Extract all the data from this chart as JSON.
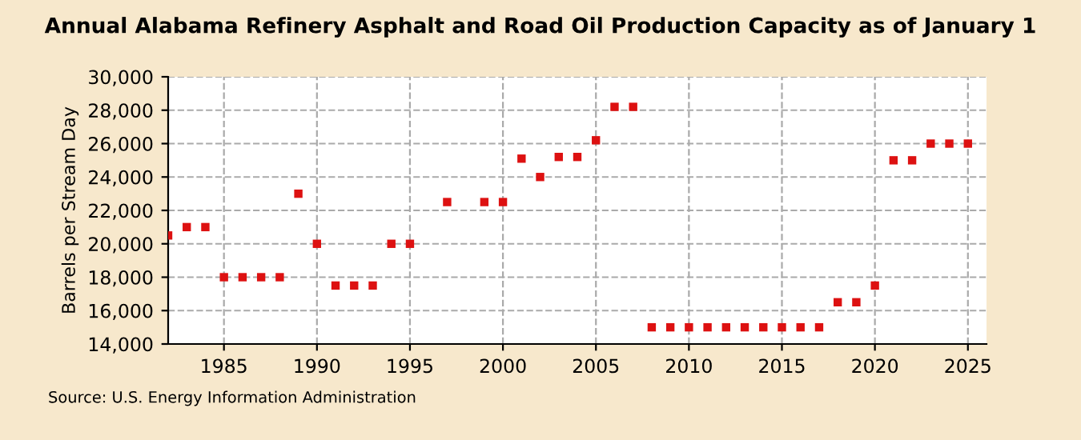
{
  "chart_data": {
    "type": "scatter",
    "title": "Annual Alabama Refinery Asphalt and Road Oil Production Capacity as of January 1",
    "ylabel": "Barrels per Stream Day",
    "annotations": [
      "Source: U.S. Energy Information Administration"
    ],
    "x": [
      1982,
      1983,
      1984,
      1985,
      1986,
      1987,
      1988,
      1989,
      1990,
      1991,
      1992,
      1993,
      1994,
      1995,
      1997,
      1999,
      2000,
      2001,
      2002,
      2003,
      2004,
      2005,
      2006,
      2007,
      2008,
      2009,
      2010,
      2011,
      2012,
      2013,
      2014,
      2015,
      2016,
      2017,
      2018,
      2019,
      2020,
      2021,
      2022,
      2023,
      2024,
      2025
    ],
    "series": [
      {
        "color": "#dd1111",
        "values": [
          20500,
          21000,
          21000,
          18000,
          18000,
          18000,
          18000,
          23000,
          20000,
          17500,
          17500,
          17500,
          20000,
          20000,
          22500,
          22500,
          22500,
          25100,
          24000,
          25200,
          25200,
          26200,
          28200,
          28200,
          15000,
          15000,
          15000,
          15000,
          15000,
          15000,
          15000,
          15000,
          15000,
          15000,
          16500,
          16500,
          17500,
          25000,
          25000,
          26000,
          26000,
          26000
        ]
      }
    ],
    "xlim": [
      1982,
      2026
    ],
    "xticks": [
      1985,
      1990,
      1995,
      2000,
      2005,
      2010,
      2015,
      2020,
      2025
    ],
    "ylim": [
      14000,
      30000
    ],
    "yticks": [
      {
        "value": 14000,
        "label": "14,000"
      },
      {
        "value": 16000,
        "label": "16,000"
      },
      {
        "value": 18000,
        "label": "18,000"
      },
      {
        "value": 20000,
        "label": "20,000"
      },
      {
        "value": 22000,
        "label": "22,000"
      },
      {
        "value": 24000,
        "label": "24,000"
      },
      {
        "value": 26000,
        "label": "26,000"
      },
      {
        "value": 28000,
        "label": "28,000"
      },
      {
        "value": 30000,
        "label": "30,000"
      }
    ],
    "grid": true,
    "marker": "square",
    "legend": false
  }
}
